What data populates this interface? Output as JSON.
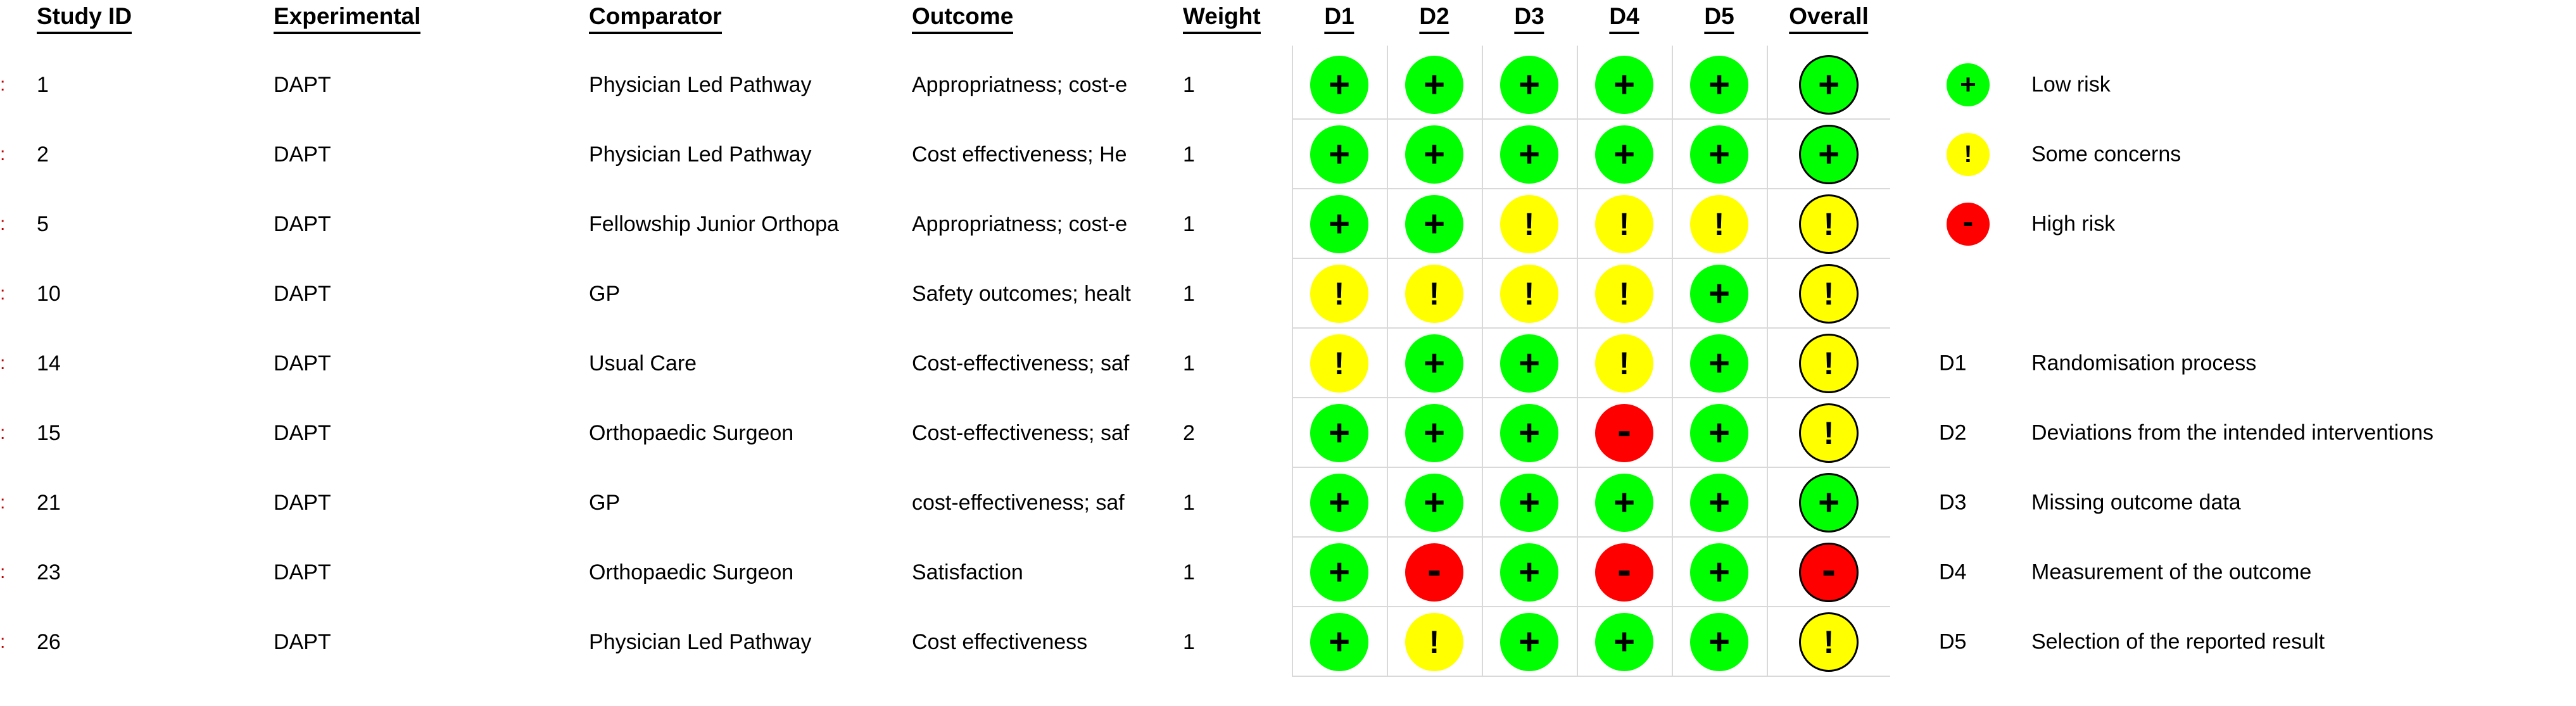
{
  "colors": {
    "low": "#00FF00",
    "some": "#FFFF00",
    "high": "#FF0000",
    "symbol": "#000000",
    "overall_outline": "#000000",
    "grid": "#D9D9D9",
    "edge_fragment": "#C00000"
  },
  "symbols": {
    "low": "+",
    "some": "!",
    "high": "-"
  },
  "artifacts": {
    "row_edge_fragment": ":"
  },
  "legend": {
    "risk_levels": [
      {
        "level": "low",
        "symbol": "+",
        "label": "Low risk"
      },
      {
        "level": "some",
        "symbol": "!",
        "label": "Some concerns"
      },
      {
        "level": "high",
        "symbol": "-",
        "label": "High risk"
      }
    ]
  },
  "domains": [
    {
      "id": "D1",
      "label": "Randomisation process"
    },
    {
      "id": "D2",
      "label": "Deviations from the intended interventions"
    },
    {
      "id": "D3",
      "label": "Missing outcome data"
    },
    {
      "id": "D4",
      "label": "Measurement of the outcome"
    },
    {
      "id": "D5",
      "label": "Selection of the reported result"
    }
  ],
  "chart_data": {
    "type": "table",
    "subtype": "risk-of-bias-traffic-light-plot",
    "columns": [
      "Study ID",
      "Experimental",
      "Comparator",
      "Outcome",
      "Weight",
      "D1",
      "D2",
      "D3",
      "D4",
      "D5",
      "Overall"
    ],
    "judgement_key": {
      "low": "Low risk (+)",
      "some": "Some concerns (!)",
      "high": "High risk (-)"
    },
    "rows": [
      {
        "study_id": "1",
        "experimental": "DAPT",
        "comparator": "Physician Led Pathway",
        "outcome": "Appropriatness; cost-e",
        "weight": "1",
        "judgements": [
          "low",
          "low",
          "low",
          "low",
          "low"
        ],
        "overall": "low"
      },
      {
        "study_id": "2",
        "experimental": "DAPT",
        "comparator": "Physician Led Pathway",
        "outcome": "Cost effectiveness; He",
        "weight": "1",
        "judgements": [
          "low",
          "low",
          "low",
          "low",
          "low"
        ],
        "overall": "low"
      },
      {
        "study_id": "5",
        "experimental": "DAPT",
        "comparator": "Fellowship Junior Orthopa",
        "outcome": "Appropriatness; cost-e",
        "weight": "1",
        "judgements": [
          "low",
          "low",
          "some",
          "some",
          "some"
        ],
        "overall": "some"
      },
      {
        "study_id": "10",
        "experimental": "DAPT",
        "comparator": "GP",
        "outcome": "Safety outcomes; healt",
        "weight": "1",
        "judgements": [
          "some",
          "some",
          "some",
          "some",
          "low"
        ],
        "overall": "some"
      },
      {
        "study_id": "14",
        "experimental": "DAPT",
        "comparator": "Usual Care",
        "outcome": "Cost-effectiveness; saf",
        "weight": "1",
        "judgements": [
          "some",
          "low",
          "low",
          "some",
          "low"
        ],
        "overall": "some"
      },
      {
        "study_id": "15",
        "experimental": "DAPT",
        "comparator": "Orthopaedic Surgeon",
        "outcome": "Cost-effectiveness; saf",
        "weight": "2",
        "judgements": [
          "low",
          "low",
          "low",
          "high",
          "low"
        ],
        "overall": "some"
      },
      {
        "study_id": "21",
        "experimental": "DAPT",
        "comparator": "GP",
        "outcome": "cost-effectiveness; saf",
        "weight": "1",
        "judgements": [
          "low",
          "low",
          "low",
          "low",
          "low"
        ],
        "overall": "low"
      },
      {
        "study_id": "23",
        "experimental": "DAPT",
        "comparator": "Orthopaedic Surgeon",
        "outcome": "Satisfaction",
        "weight": "1",
        "judgements": [
          "low",
          "high",
          "low",
          "high",
          "low"
        ],
        "overall": "high"
      },
      {
        "study_id": "26",
        "experimental": "DAPT",
        "comparator": "Physician Led Pathway",
        "outcome": "Cost effectiveness",
        "weight": "1",
        "judgements": [
          "low",
          "some",
          "low",
          "low",
          "low"
        ],
        "overall": "some"
      }
    ]
  }
}
